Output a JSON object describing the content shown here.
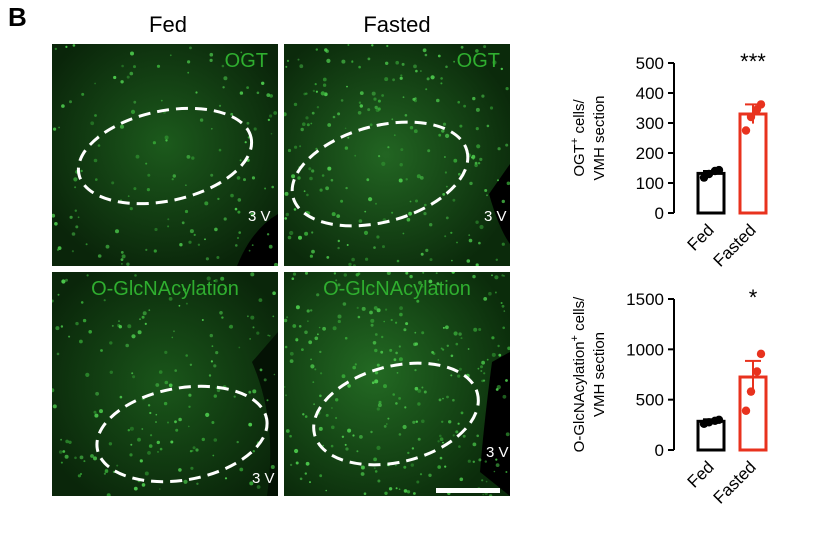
{
  "figure": {
    "panel_letter": "B",
    "columns": [
      "Fed",
      "Fasted"
    ],
    "rows": [
      {
        "stain": "OGT",
        "ventricle_fed": "3 V",
        "ventricle_fasted": "3 V"
      },
      {
        "stain": "O-GlcNAcylation",
        "ventricle_fed": "3 V",
        "ventricle_fasted": "3 V"
      }
    ],
    "colors": {
      "stain": "#2fae2f",
      "tissue": "#0b2a0b",
      "fed_bar": "#000000",
      "fasted_bar": "#e8321e"
    }
  },
  "chart_data": [
    {
      "type": "bar",
      "ylabel_line1": "OGT",
      "ylabel_sup": "+",
      "ylabel_line1_rest": " cells/",
      "ylabel_line2": "VMH section",
      "categories": [
        "Fed",
        "Fasted"
      ],
      "values": [
        132,
        330
      ],
      "errors": [
        8,
        32
      ],
      "points": [
        [
          118,
          130,
          140,
          143
        ],
        [
          275,
          320,
          345,
          362
        ]
      ],
      "ylim": [
        0,
        500
      ],
      "yticks": [
        0,
        100,
        200,
        300,
        400,
        500
      ],
      "ytick_labels": [
        "0",
        "100",
        "200",
        "300",
        "400",
        "500"
      ],
      "significance": "***"
    },
    {
      "type": "bar",
      "ylabel_line1": "O-GlcNAcylation",
      "ylabel_sup": "+",
      "ylabel_line1_rest": " cells/",
      "ylabel_line2": "VMH section",
      "categories": [
        "Fed",
        "Fasted"
      ],
      "values": [
        285,
        725
      ],
      "errors": [
        20,
        160
      ],
      "points": [
        [
          260,
          275,
          290,
          300
        ],
        [
          390,
          580,
          780,
          955
        ]
      ],
      "ylim": [
        0,
        1500
      ],
      "yticks": [
        0,
        500,
        1000,
        1500
      ],
      "ytick_labels": [
        "0",
        "500",
        "1000",
        "1500"
      ],
      "significance": "*"
    }
  ]
}
